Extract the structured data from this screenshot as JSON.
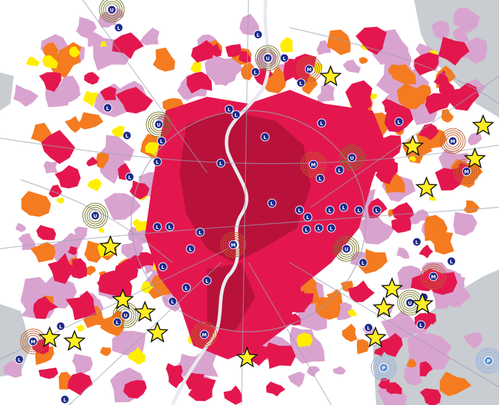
{
  "map": {
    "colors": {
      "background": "#ffffff",
      "outside_area": "#c9ccd1",
      "dense_core": "#b8123a",
      "high": "#e3174e",
      "medium": "#f47b20",
      "low": "#ffee00",
      "very_low": "#d9a3cf",
      "roads": "#9aa3b2",
      "river": "#e9e9ef",
      "marker_fill": "#1f2a8c",
      "marker_ring": "#8c8fd0",
      "star_fill": "#ffee22"
    },
    "marker_labels": {
      "L": "L",
      "M": "M",
      "U": "U",
      "P": "P"
    }
  }
}
